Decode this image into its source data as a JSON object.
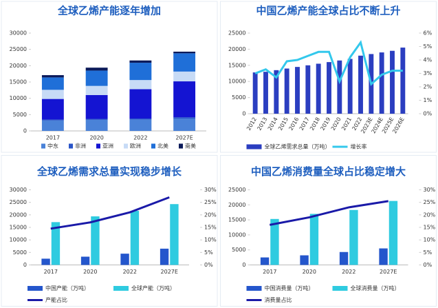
{
  "chart_data": [
    {
      "type": "bar",
      "stacked": true,
      "title": "全球乙烯产能逐年增加",
      "categories": [
        "2017",
        "2020",
        "2022",
        "2027E"
      ],
      "series": [
        {
          "name": "中东",
          "color": "#4a82d8",
          "values": [
            3200,
            3400,
            3500,
            3800
          ]
        },
        {
          "name": "非洲",
          "color": "#2a55c8",
          "values": [
            300,
            300,
            300,
            400
          ]
        },
        {
          "name": "亚洲",
          "color": "#1414d2",
          "values": [
            6300,
            7300,
            9000,
            11000
          ]
        },
        {
          "name": "欧洲",
          "color": "#c7dbf6",
          "values": [
            2800,
            2800,
            2800,
            3000
          ]
        },
        {
          "name": "北美",
          "color": "#1f6fd8",
          "values": [
            3800,
            4700,
            5300,
            5600
          ]
        },
        {
          "name": "南美",
          "color": "#0b1a5a",
          "values": [
            700,
            900,
            700,
            500
          ]
        }
      ],
      "ylim": [
        0,
        30000
      ],
      "yticks": [
        0,
        5000,
        10000,
        15000,
        20000,
        25000,
        30000
      ],
      "grid": false
    },
    {
      "type": "combo",
      "title": "中国乙烯产能全球占比不断上升",
      "categories": [
        "2012",
        "2013",
        "2014",
        "2015",
        "2016",
        "2017",
        "2018",
        "2019",
        "2020",
        "2021",
        "2022",
        "2023E",
        "2024E",
        "2025E",
        "2026E"
      ],
      "xtick_rotation": -60,
      "series": [
        {
          "name": "全球乙烯需求总量（万吨）",
          "kind": "bar",
          "color": "#2b3ec0",
          "values": [
            12800,
            13000,
            13500,
            14000,
            14500,
            15000,
            15500,
            16000,
            16500,
            17000,
            18000,
            18500,
            19000,
            19500,
            20500
          ]
        },
        {
          "name": "增长率",
          "kind": "line",
          "axis": "y2",
          "color": "#33c8ec",
          "values": [
            3.0,
            3.3,
            2.7,
            3.9,
            4.0,
            4.3,
            4.6,
            4.6,
            2.4,
            4.2,
            5.3,
            2.2,
            2.9,
            3.2,
            3.2
          ]
        }
      ],
      "ylim": [
        0,
        25000
      ],
      "yticks": [
        0,
        5000,
        10000,
        15000,
        20000,
        25000
      ],
      "y2lim": [
        0,
        6
      ],
      "y2ticks": [
        {
          "value": 0,
          "label": "0%"
        },
        {
          "value": 1,
          "label": "1%"
        },
        {
          "value": 2,
          "label": "2%"
        },
        {
          "value": 3,
          "label": "3%"
        },
        {
          "value": 4,
          "label": "4%"
        },
        {
          "value": 5,
          "label": "5%"
        },
        {
          "value": 6,
          "label": "6%"
        }
      ]
    },
    {
      "type": "combo",
      "title": "全球乙烯需求总量实现稳步增长",
      "categories": [
        "2017",
        "2020",
        "2022",
        "2027E"
      ],
      "series": [
        {
          "name": "中国产能（万吨）",
          "kind": "bar",
          "color": "#2456cc",
          "values": [
            2500,
            3300,
            4500,
            6500
          ]
        },
        {
          "name": "全球产能（万吨）",
          "kind": "bar",
          "color": "#2fcbe0",
          "values": [
            17100,
            19400,
            21600,
            24300
          ]
        },
        {
          "name": "产能占比",
          "kind": "line",
          "axis": "y2",
          "color": "#1a1aa8",
          "values": [
            14.5,
            17,
            21,
            27
          ]
        }
      ],
      "ylim": [
        0,
        30000
      ],
      "yticks": [
        0,
        5000,
        10000,
        15000,
        20000,
        25000,
        30000
      ],
      "y2lim": [
        0,
        30
      ],
      "y2ticks": [
        {
          "value": 0,
          "label": "0%"
        },
        {
          "value": 5,
          "label": "5%"
        },
        {
          "value": 10,
          "label": "10%"
        },
        {
          "value": 15,
          "label": "15%"
        },
        {
          "value": 20,
          "label": "20%"
        },
        {
          "value": 25,
          "label": "25%"
        },
        {
          "value": 30,
          "label": "30%"
        }
      ]
    },
    {
      "type": "combo",
      "title": "中国乙烯消费量全球占比稳定增大",
      "categories": [
        "2017",
        "2020",
        "2022",
        "2027E"
      ],
      "series": [
        {
          "name": "中国消费量（万吨）",
          "kind": "bar",
          "color": "#2456cc",
          "values": [
            2500,
            3200,
            4300,
            5500
          ]
        },
        {
          "name": "全球消费量（万吨）",
          "kind": "bar",
          "color": "#2fcbe0",
          "values": [
            15300,
            17000,
            18300,
            21300
          ]
        },
        {
          "name": "消费量占比",
          "kind": "line",
          "axis": "y2",
          "color": "#1a1aa8",
          "values": [
            16,
            19,
            23,
            25.5
          ]
        }
      ],
      "ylim": [
        0,
        25000
      ],
      "yticks": [
        0,
        5000,
        10000,
        15000,
        20000,
        25000
      ],
      "y2lim": [
        0,
        30
      ],
      "y2ticks": [
        {
          "value": 0,
          "label": "0%"
        },
        {
          "value": 5,
          "label": "5%"
        },
        {
          "value": 10,
          "label": "10%"
        },
        {
          "value": 15,
          "label": "15%"
        },
        {
          "value": 20,
          "label": "20%"
        },
        {
          "value": 25,
          "label": "25%"
        },
        {
          "value": 30,
          "label": "30%"
        }
      ]
    }
  ]
}
